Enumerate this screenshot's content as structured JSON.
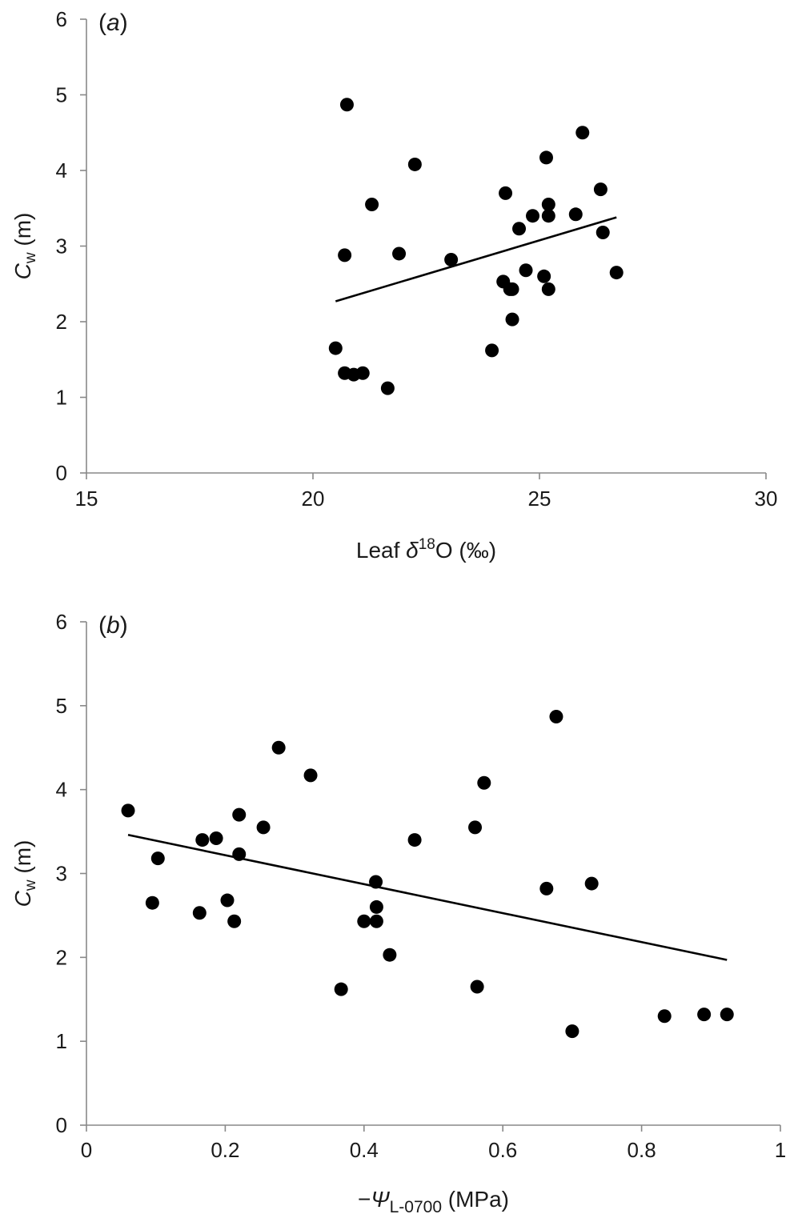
{
  "chart_data": [
    {
      "type": "scatter",
      "panel_label": {
        "open": "(",
        "letter": "a",
        "close": ")"
      },
      "xlabel": {
        "pre": "Leaf ",
        "sym": "δ",
        "sup": "18",
        "post": "O (‰)"
      },
      "ylabel": {
        "sym": "C",
        "sub": "w",
        "post": " (m)"
      },
      "xlim": [
        15,
        30
      ],
      "ylim": [
        0,
        6
      ],
      "xticks": [
        "15",
        "20",
        "25",
        "30"
      ],
      "yticks": [
        "0",
        "1",
        "2",
        "3",
        "4",
        "5",
        "6"
      ],
      "grid": false,
      "legend": "none",
      "colors": {
        "marker": "#000000",
        "axis": "#888888"
      },
      "points": [
        {
          "x": 20.5,
          "y": 1.65
        },
        {
          "x": 20.7,
          "y": 1.32
        },
        {
          "x": 20.9,
          "y": 1.3
        },
        {
          "x": 21.1,
          "y": 1.32
        },
        {
          "x": 21.65,
          "y": 1.12
        },
        {
          "x": 20.7,
          "y": 2.88
        },
        {
          "x": 20.75,
          "y": 4.87
        },
        {
          "x": 21.3,
          "y": 3.55
        },
        {
          "x": 21.9,
          "y": 2.9
        },
        {
          "x": 22.25,
          "y": 4.08
        },
        {
          "x": 23.05,
          "y": 2.82
        },
        {
          "x": 23.95,
          "y": 1.62
        },
        {
          "x": 24.2,
          "y": 2.53
        },
        {
          "x": 24.25,
          "y": 3.7
        },
        {
          "x": 24.35,
          "y": 2.43
        },
        {
          "x": 24.4,
          "y": 2.43
        },
        {
          "x": 24.4,
          "y": 2.03
        },
        {
          "x": 24.55,
          "y": 3.23
        },
        {
          "x": 24.7,
          "y": 2.68
        },
        {
          "x": 24.85,
          "y": 3.4
        },
        {
          "x": 25.1,
          "y": 2.6
        },
        {
          "x": 25.15,
          "y": 4.17
        },
        {
          "x": 25.2,
          "y": 3.55
        },
        {
          "x": 25.2,
          "y": 3.4
        },
        {
          "x": 25.2,
          "y": 2.43
        },
        {
          "x": 25.8,
          "y": 3.42
        },
        {
          "x": 25.95,
          "y": 4.5
        },
        {
          "x": 26.35,
          "y": 3.75
        },
        {
          "x": 26.4,
          "y": 3.18
        },
        {
          "x": 26.7,
          "y": 2.65
        }
      ],
      "trendline": {
        "x": [
          20.5,
          26.7
        ],
        "y": [
          2.27,
          3.38
        ]
      }
    },
    {
      "type": "scatter",
      "panel_label": {
        "open": "(",
        "letter": "b",
        "close": ")"
      },
      "xlabel": {
        "pre": "−",
        "sym": "Ψ",
        "sub": "L-0700",
        "post": " (MPa)"
      },
      "ylabel": {
        "sym": "C",
        "sub": "w",
        "post": " (m)"
      },
      "xlim": [
        0,
        1
      ],
      "ylim": [
        0,
        6
      ],
      "xticks": [
        "0",
        "0.2",
        "0.4",
        "0.6",
        "0.8",
        "1"
      ],
      "yticks": [
        "0",
        "1",
        "2",
        "3",
        "4",
        "5",
        "6"
      ],
      "grid": false,
      "legend": "none",
      "colors": {
        "marker": "#000000",
        "axis": "#888888"
      },
      "points": [
        {
          "x": 0.06,
          "y": 3.75
        },
        {
          "x": 0.095,
          "y": 2.65
        },
        {
          "x": 0.103,
          "y": 3.18
        },
        {
          "x": 0.163,
          "y": 2.53
        },
        {
          "x": 0.167,
          "y": 3.4
        },
        {
          "x": 0.187,
          "y": 3.42
        },
        {
          "x": 0.203,
          "y": 2.68
        },
        {
          "x": 0.213,
          "y": 2.43
        },
        {
          "x": 0.22,
          "y": 3.7
        },
        {
          "x": 0.22,
          "y": 3.23
        },
        {
          "x": 0.255,
          "y": 3.55
        },
        {
          "x": 0.277,
          "y": 4.5
        },
        {
          "x": 0.323,
          "y": 4.17
        },
        {
          "x": 0.367,
          "y": 1.62
        },
        {
          "x": 0.4,
          "y": 2.43
        },
        {
          "x": 0.417,
          "y": 2.9
        },
        {
          "x": 0.418,
          "y": 2.6
        },
        {
          "x": 0.418,
          "y": 2.43
        },
        {
          "x": 0.437,
          "y": 2.03
        },
        {
          "x": 0.473,
          "y": 3.4
        },
        {
          "x": 0.56,
          "y": 3.55
        },
        {
          "x": 0.563,
          "y": 1.65
        },
        {
          "x": 0.573,
          "y": 4.08
        },
        {
          "x": 0.663,
          "y": 2.82
        },
        {
          "x": 0.677,
          "y": 4.87
        },
        {
          "x": 0.7,
          "y": 1.12
        },
        {
          "x": 0.728,
          "y": 2.88
        },
        {
          "x": 0.833,
          "y": 1.3
        },
        {
          "x": 0.89,
          "y": 1.32
        },
        {
          "x": 0.923,
          "y": 1.32
        }
      ],
      "trendline": {
        "x": [
          0.06,
          0.923
        ],
        "y": [
          3.46,
          1.97
        ]
      }
    }
  ]
}
